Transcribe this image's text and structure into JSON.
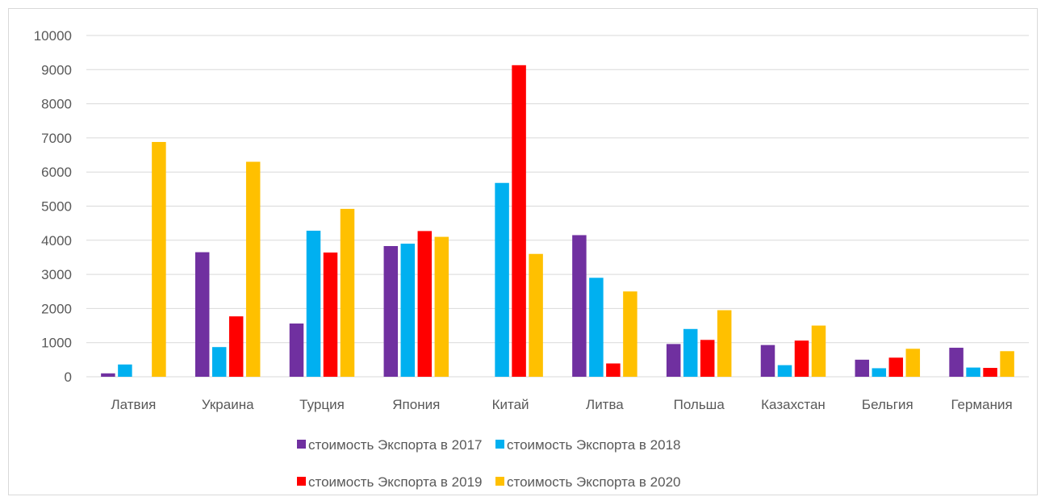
{
  "chart_data": {
    "type": "bar",
    "categories": [
      "Латвия",
      "Украина",
      "Турция",
      "Япония",
      "Китай",
      "Литва",
      "Польша",
      "Казахстан",
      "Бельгия",
      "Германия"
    ],
    "series": [
      {
        "name": "стоимость Экспорта в 2017",
        "color": "#7030a0",
        "values": [
          100,
          3650,
          1560,
          3830,
          0,
          4150,
          960,
          930,
          500,
          850
        ]
      },
      {
        "name": "стоимость Экспорта в 2018",
        "color": "#00b0f0",
        "values": [
          360,
          870,
          4280,
          3900,
          5680,
          2900,
          1400,
          340,
          250,
          270
        ]
      },
      {
        "name": "стоимость Экспорта в 2019",
        "color": "#ff0000",
        "values": [
          0,
          1770,
          3640,
          4270,
          9130,
          390,
          1080,
          1060,
          560,
          260
        ]
      },
      {
        "name": "стоимость Экспорта в 2020",
        "color": "#ffc000",
        "values": [
          6880,
          6300,
          4920,
          4100,
          3600,
          2500,
          1950,
          1500,
          820,
          750
        ]
      }
    ],
    "yticks": [
      "0",
      "1000",
      "2000",
      "3000",
      "4000",
      "5000",
      "6000",
      "7000",
      "8000",
      "9000",
      "10000"
    ],
    "ylim": [
      0,
      10000
    ],
    "grid": true,
    "legend_position": "bottom"
  }
}
